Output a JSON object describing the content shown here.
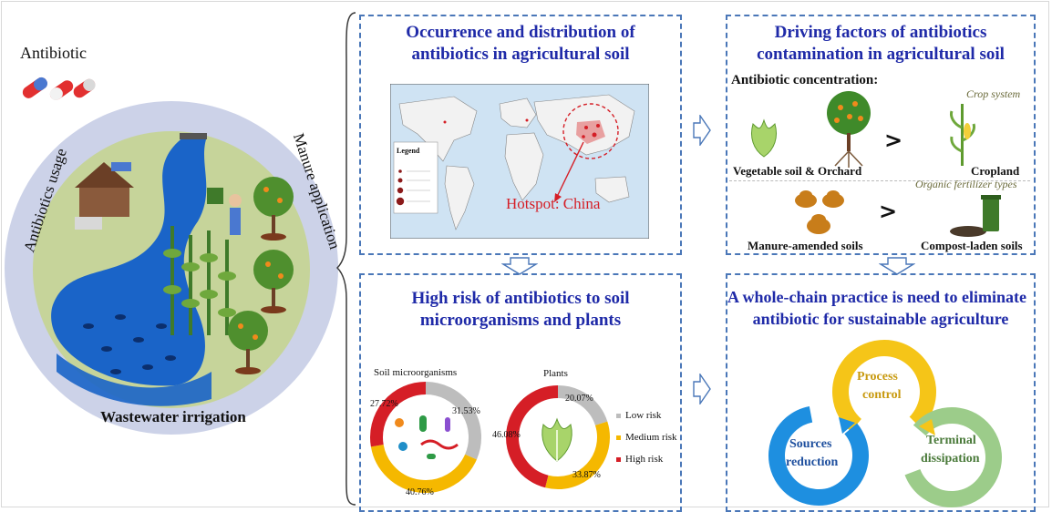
{
  "left": {
    "title": "Antibiotic",
    "usage_label": "Antibiotics usage",
    "manure_label": "Manure application",
    "irrigation_label": "Wastewater irrigation"
  },
  "panel_tl": {
    "title_line1": "Occurrence and distribution of",
    "title_line2": "antibiotics in agricultural soil",
    "hotspot": "Hotspot: China",
    "legend_title": "Legend"
  },
  "panel_tr": {
    "title_line1": "Driving factors of antibiotics",
    "title_line2": "contamination in agricultural soil",
    "concentration_label": "Antibiotic concentration:",
    "crop_system": "Crop system",
    "vegetable_label": "Vegetable soil & Orchard",
    "cropland_label": "Cropland",
    "fertilizer_types": "Organic fertilizer types",
    "manure_soils": "Manure-amended soils",
    "compost_soils": "Compost-laden soils",
    "gt": ">"
  },
  "panel_bl": {
    "title_line1": "High risk of antibiotics to soil",
    "title_line2": "microorganisms and plants",
    "soil_label": "Soil microorganisms",
    "plants_label": "Plants",
    "soil_pcts": [
      "27.72%",
      "31.53%",
      "40.76%"
    ],
    "plant_pcts": [
      "20.07%",
      "46.08%",
      "33.87%"
    ],
    "legend": [
      "Low risk",
      "Medium risk",
      "High risk"
    ]
  },
  "panel_br": {
    "title_line1": "A whole-chain practice is need to eliminate",
    "title_line2": "antibiotic for sustainable agriculture",
    "process": "Process",
    "control": "control",
    "sources": "Sources",
    "reduction": "reduction",
    "terminal": "Terminal",
    "dissipation": "dissipation"
  },
  "colors": {
    "title_blue": "#1f2aa8",
    "dash_blue": "#4a77b8",
    "low_risk": "#bdbdbd",
    "medium_risk": "#f5b800",
    "high_risk": "#d51e26",
    "cycle_blue": "#1e8fe0",
    "cycle_yellow": "#f5c518",
    "cycle_green": "#9ccc8a"
  },
  "chart_data": [
    {
      "type": "pie",
      "title": "Soil microorganisms",
      "categories": [
        "Low risk",
        "Medium risk",
        "High risk"
      ],
      "values": [
        31.53,
        40.76,
        27.72
      ]
    },
    {
      "type": "pie",
      "title": "Plants",
      "categories": [
        "Low risk",
        "Medium risk",
        "High risk"
      ],
      "values": [
        20.07,
        33.87,
        46.08
      ]
    }
  ]
}
